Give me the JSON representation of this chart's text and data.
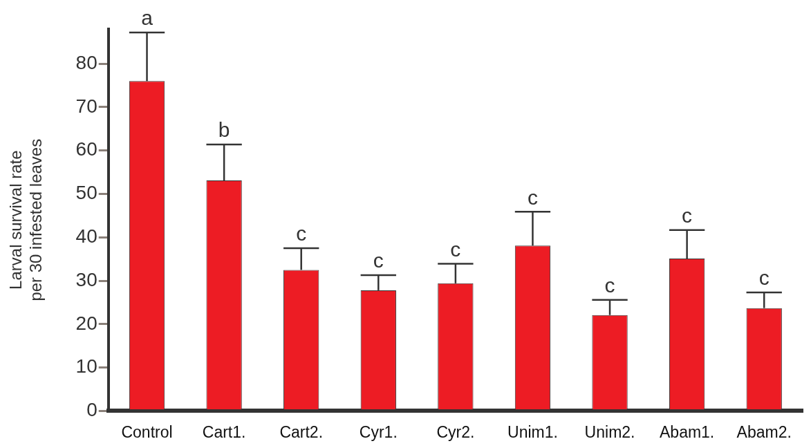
{
  "chart_data": {
    "type": "bar",
    "ylabel": "Larval survival rate\nper 30 infested leaves",
    "categories": [
      "Control",
      "Cart1.",
      "Cart2.",
      "Cyr1.",
      "Cyr2.",
      "Unim1.",
      "Unim2.",
      "Abam1.",
      "Abam2."
    ],
    "values": [
      76,
      53.1,
      32.5,
      27.8,
      29.4,
      38.1,
      22.1,
      35.1,
      23.7
    ],
    "errors": [
      [
        76,
        87.2
      ],
      [
        53.1,
        61.4
      ],
      [
        32.5,
        37.5
      ],
      [
        27.8,
        31.3
      ],
      [
        29.4,
        33.9
      ],
      [
        38.1,
        45.9
      ],
      [
        22.1,
        25.6
      ],
      [
        35.1,
        41.7
      ],
      [
        23.7,
        27.3
      ]
    ],
    "color": "#ed1c24",
    "ylim": [
      0,
      88
    ],
    "yticks": [
      0,
      10,
      20,
      30,
      40,
      50,
      60,
      70,
      80
    ],
    "grid": false,
    "legend": false,
    "annotations": [
      {
        "text": "a",
        "x": "Control",
        "y": 87.2
      },
      {
        "text": "b",
        "x": "Cart1.",
        "y": 61.4
      },
      {
        "text": "c",
        "x": "Cart2.",
        "y": 37.5
      },
      {
        "text": "c",
        "x": "Cyr1.",
        "y": 31.3
      },
      {
        "text": "c",
        "x": "Cyr2.",
        "y": 33.9
      },
      {
        "text": "c",
        "x": "Unim1.",
        "y": 45.9
      },
      {
        "text": "c",
        "x": "Unim2.",
        "y": 25.6
      },
      {
        "text": "c",
        "x": "Abam1.",
        "y": 41.7
      },
      {
        "text": "c",
        "x": "Abam2.",
        "y": 27.3
      }
    ]
  }
}
